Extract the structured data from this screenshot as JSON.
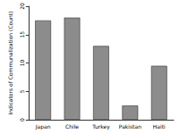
{
  "chart_data": {
    "type": "bar",
    "y_label": "Indicators of Communalization (Count)",
    "categories": [
      "Japan",
      "Chile",
      "Turkey",
      "Pakistan",
      "Haiti"
    ],
    "values": [
      17.5,
      18,
      13,
      2.5,
      9.5
    ],
    "color": "#8c8c8c",
    "ylim": [
      0,
      20
    ],
    "yticks": [
      0,
      5,
      10,
      15,
      20
    ],
    "grid": false
  }
}
